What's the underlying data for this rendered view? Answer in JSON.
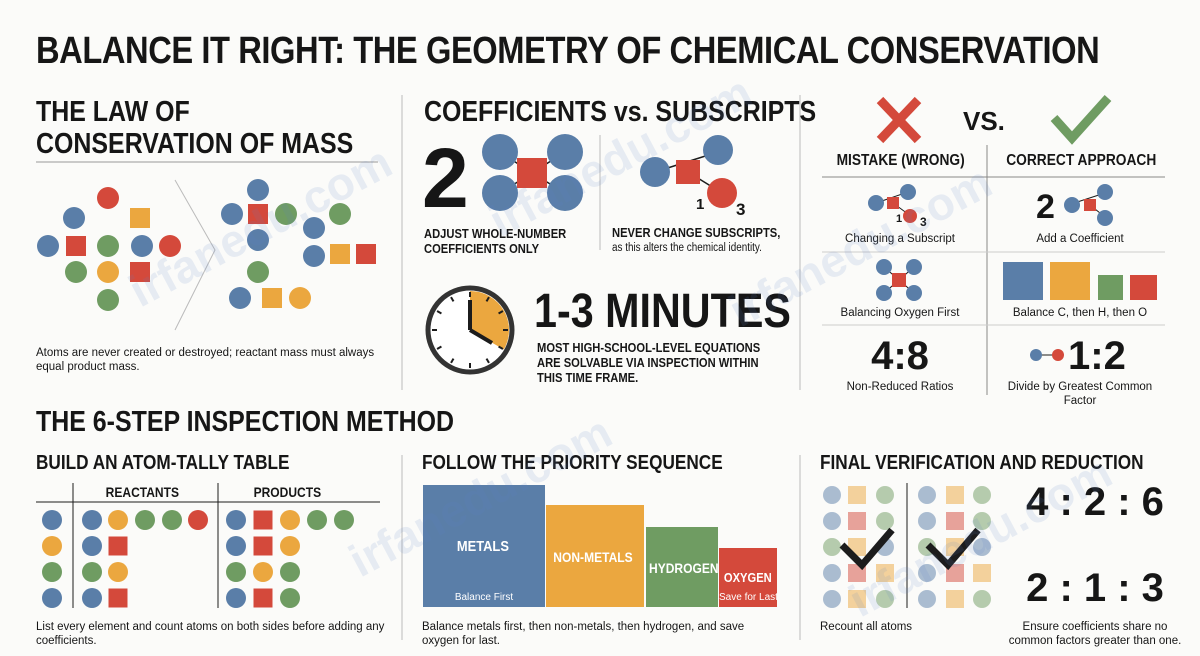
{
  "title": {
    "bold": "BALANCE IT RIGHT:",
    "rest": "THE GEOMETRY OF CHEMICAL CONSERVATION"
  },
  "law": {
    "heading": "THE LAW OF CONSERVATION OF MASS",
    "caption": "Atoms are never created or destroyed; reactant mass must always equal product mass."
  },
  "coefficients": {
    "heading": "COEFFICIENTS vs. SUBSCRIPTS",
    "coefficient": "2",
    "left_caption": "ADJUST WHOLE-NUMBER COEFFICIENTS ONLY",
    "subscript_a": "1",
    "subscript_b": "3",
    "right_caption_bold": "NEVER CHANGE SUBSCRIPTS,",
    "right_caption": "as this alters the chemical identity."
  },
  "time": {
    "heading": "1-3 MINUTES",
    "caption": "MOST HIGH-SCHOOL-LEVEL EQUATIONS ARE SOLVABLE VIA INSPECTION WITHIN THIS TIME FRAME."
  },
  "comparison": {
    "vs": "VS.",
    "wrong_heading": "MISTAKE (WRONG)",
    "right_heading": "CORRECT APPROACH",
    "rows": [
      {
        "wrong_marks": [
          "1",
          "3"
        ],
        "wrong": "Changing a Subscript",
        "right_mark": "2",
        "right": "Add a Coefficient"
      },
      {
        "wrong": "Balancing Oxygen First",
        "right": "Balance C, then H, then O"
      },
      {
        "wrong_mark": "4:8",
        "wrong": "Non-Reduced Ratios",
        "right_mark": "1:2",
        "right": "Divide by Greatest Common Factor"
      }
    ]
  },
  "method": {
    "heading": "THE 6-STEP INSPECTION METHOD",
    "tally": {
      "heading": "BUILD AN ATOM-TALLY TABLE",
      "reactants": "REACTANTS",
      "products": "PRODUCTS",
      "caption": "List every element and count atoms on both sides before adding any coefficients."
    },
    "priority": {
      "heading": "FOLLOW THE PRIORITY SEQUENCE",
      "blocks": [
        {
          "label": "METALS",
          "note": "Balance First"
        },
        {
          "label": "NON-METALS"
        },
        {
          "label": "HYDROGEN"
        },
        {
          "label": "OXYGEN",
          "note": "Save for Last"
        }
      ],
      "caption": "Balance metals first, then non-metals, then hydrogen, and save oxygen for last."
    },
    "verification": {
      "heading": "FINAL VERIFICATION AND REDUCTION",
      "caption_left": "Recount all atoms",
      "ratio_before": "4 : 2 : 6",
      "ratio_after": "2 : 1 : 3",
      "caption_right": "Ensure coefficients share no common factors greater than one."
    }
  },
  "watermark": "irfanedu.com"
}
